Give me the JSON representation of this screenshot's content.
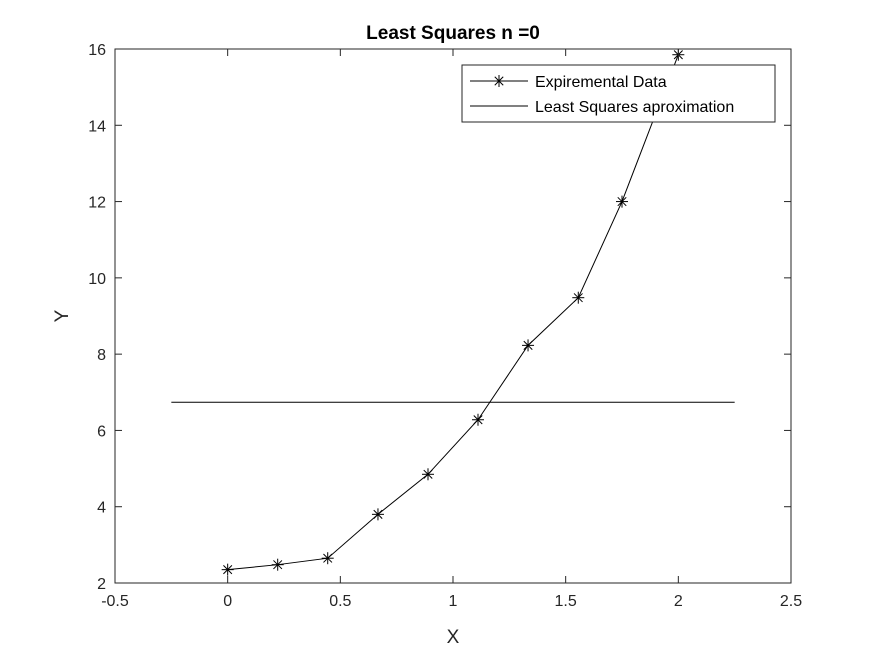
{
  "chart_data": {
    "type": "line",
    "title": "Least Squares n =0",
    "xlabel": "X",
    "ylabel": "Y",
    "xlim": [
      -0.5,
      2.5
    ],
    "ylim": [
      2,
      16
    ],
    "xticks": [
      -0.5,
      0,
      0.5,
      1,
      1.5,
      2,
      2.5
    ],
    "yticks": [
      2,
      4,
      6,
      8,
      10,
      12,
      14,
      16
    ],
    "xtick_labels": [
      "-0.5",
      "0",
      "0.5",
      "1",
      "1.5",
      "2",
      "2.5"
    ],
    "ytick_labels": [
      "2",
      "4",
      "6",
      "8",
      "10",
      "12",
      "14",
      "16"
    ],
    "grid": false,
    "legend_position": "top-right",
    "line_color": "#000000",
    "series": [
      {
        "name": "Expiremental Data",
        "marker": "asterisk",
        "x": [
          0,
          0.222,
          0.444,
          0.667,
          0.889,
          1.111,
          1.333,
          1.556,
          1.75,
          2.0
        ],
        "y": [
          2.35,
          2.48,
          2.65,
          3.8,
          4.85,
          6.28,
          8.23,
          9.48,
          12.0,
          15.85
        ]
      },
      {
        "name": "Least Squares aproximation",
        "marker": "none",
        "x": [
          -0.25,
          2.25
        ],
        "y": [
          6.74,
          6.74
        ]
      }
    ]
  }
}
